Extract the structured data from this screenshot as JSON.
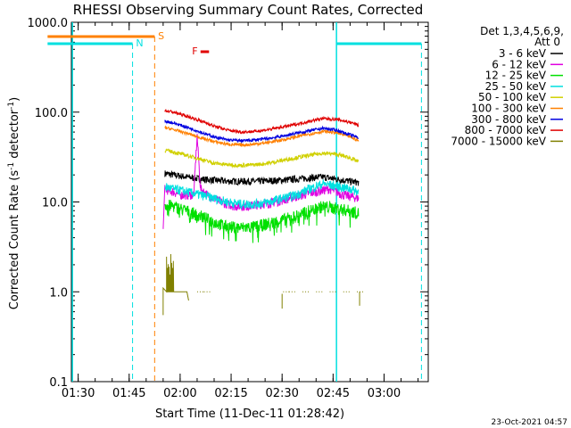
{
  "chart_data": {
    "type": "line",
    "title": "RHESSI Observing Summary Count Rates, Corrected",
    "xlabel": "Start Time (11-Dec-11 01:28:42)",
    "ylabel_prefix": "Corrected Count Rate (s",
    "ylabel_sup1": "-1",
    "ylabel_mid": " detector",
    "ylabel_sup2": "-1",
    "ylabel_suffix": ")",
    "y_scale": "log",
    "xlim_minutes": [
      88,
      193
    ],
    "ylim": [
      0.1,
      1000
    ],
    "x_ticks": [
      {
        "label": "01:30",
        "m": 90
      },
      {
        "label": "01:45",
        "m": 105
      },
      {
        "label": "02:00",
        "m": 120
      },
      {
        "label": "02:15",
        "m": 135
      },
      {
        "label": "02:30",
        "m": 150
      },
      {
        "label": "02:45",
        "m": 165
      },
      {
        "label": "03:00",
        "m": 180
      }
    ],
    "y_ticks": [
      {
        "label": "0.1",
        "v": 0.1
      },
      {
        "label": "1.0",
        "v": 1
      },
      {
        "label": "10.0",
        "v": 10
      },
      {
        "label": "100.0",
        "v": 100
      },
      {
        "label": "1000.0",
        "v": 1000
      }
    ],
    "legend": {
      "header1": "Det 1,3,4,5,6,9,",
      "header2": "Att 0",
      "placement": "top-right outside"
    },
    "series": [
      {
        "name": "3 - 6 keV",
        "color": "#000000",
        "x": [
          115,
          118,
          122,
          126,
          130,
          134,
          138,
          142,
          146,
          150,
          154,
          158,
          162,
          166,
          170,
          172.5
        ],
        "y": [
          21,
          20,
          19,
          18,
          17.5,
          17,
          17,
          17,
          17.2,
          17.5,
          18,
          18.5,
          19,
          18,
          17,
          16.5
        ]
      },
      {
        "name": "6 - 12 keV",
        "color": "#e000e0",
        "x": [
          115,
          118,
          120,
          122,
          124,
          125,
          126,
          128,
          132,
          136,
          140,
          144,
          148,
          152,
          156,
          160,
          164,
          168,
          172.5
        ],
        "y": [
          14,
          13,
          12,
          12,
          12,
          55,
          14,
          12,
          10,
          9,
          9,
          9.5,
          10,
          11,
          12,
          13,
          14,
          12,
          11
        ]
      },
      {
        "name": "12 - 25 keV",
        "color": "#00e000",
        "x": [
          115,
          118,
          122,
          126,
          130,
          134,
          138,
          142,
          146,
          150,
          154,
          158,
          162,
          166,
          170,
          172.5
        ],
        "y": [
          9.5,
          9,
          8,
          7,
          6,
          5.3,
          5.2,
          5.3,
          5.8,
          6.3,
          7,
          8,
          9,
          8.5,
          8,
          7.5
        ]
      },
      {
        "name": "25 - 50 keV",
        "color": "#00e0e0",
        "x": [
          115,
          118,
          122,
          126,
          130,
          134,
          138,
          142,
          146,
          150,
          154,
          158,
          162,
          166,
          170,
          172.5
        ],
        "y": [
          15,
          14,
          13,
          12,
          11,
          10,
          9.5,
          9.5,
          10,
          11,
          12,
          14,
          16,
          15,
          14,
          13
        ]
      },
      {
        "name": "50 - 100 keV",
        "color": "#d0d000",
        "x": [
          115,
          118,
          122,
          126,
          130,
          134,
          138,
          142,
          146,
          150,
          154,
          158,
          162,
          166,
          170,
          172.5
        ],
        "y": [
          38,
          36,
          33,
          30,
          27,
          26,
          25.5,
          26,
          27,
          29,
          31,
          33,
          35,
          34,
          31,
          28
        ]
      },
      {
        "name": "100 - 300 keV",
        "color": "#ff8000",
        "x": [
          115,
          118,
          122,
          126,
          130,
          134,
          138,
          142,
          146,
          150,
          154,
          158,
          162,
          166,
          170,
          172.5
        ],
        "y": [
          68,
          64,
          58,
          52,
          47,
          44,
          43,
          44,
          46,
          49,
          53,
          57,
          61,
          59,
          53,
          48
        ]
      },
      {
        "name": "300 - 800 keV",
        "color": "#0000e0",
        "x": [
          115,
          118,
          122,
          126,
          130,
          134,
          138,
          142,
          146,
          150,
          154,
          158,
          162,
          166,
          170,
          172.5
        ],
        "y": [
          80,
          76,
          68,
          60,
          53,
          49,
          48,
          49,
          51,
          54,
          58,
          62,
          66,
          63,
          56,
          52
        ]
      },
      {
        "name": "800 - 7000 keV",
        "color": "#e00000",
        "x": [
          115,
          118,
          122,
          126,
          130,
          134,
          138,
          142,
          146,
          150,
          154,
          158,
          162,
          166,
          170,
          172.5
        ],
        "y": [
          105,
          100,
          90,
          80,
          70,
          63,
          60,
          61,
          64,
          68,
          73,
          79,
          85,
          83,
          77,
          72
        ]
      },
      {
        "name": "7000 - 15000 keV",
        "color": "#808000",
        "x": [
          115,
          116,
          117,
          118,
          120,
          122,
          125,
          127,
          150,
          152,
          156,
          160,
          164,
          168,
          172.5
        ],
        "y": [
          1.5,
          2,
          2.5,
          2,
          1.5,
          1,
          1,
          1,
          1,
          1,
          1,
          1,
          1,
          1,
          1
        ]
      }
    ],
    "annotations": [
      {
        "text": "N",
        "color": "#00e0e0"
      },
      {
        "text": "S",
        "color": "#ff8000"
      },
      {
        "text": "F",
        "color": "#e00000"
      }
    ],
    "timestamp": "23-Oct-2021 04:57"
  }
}
